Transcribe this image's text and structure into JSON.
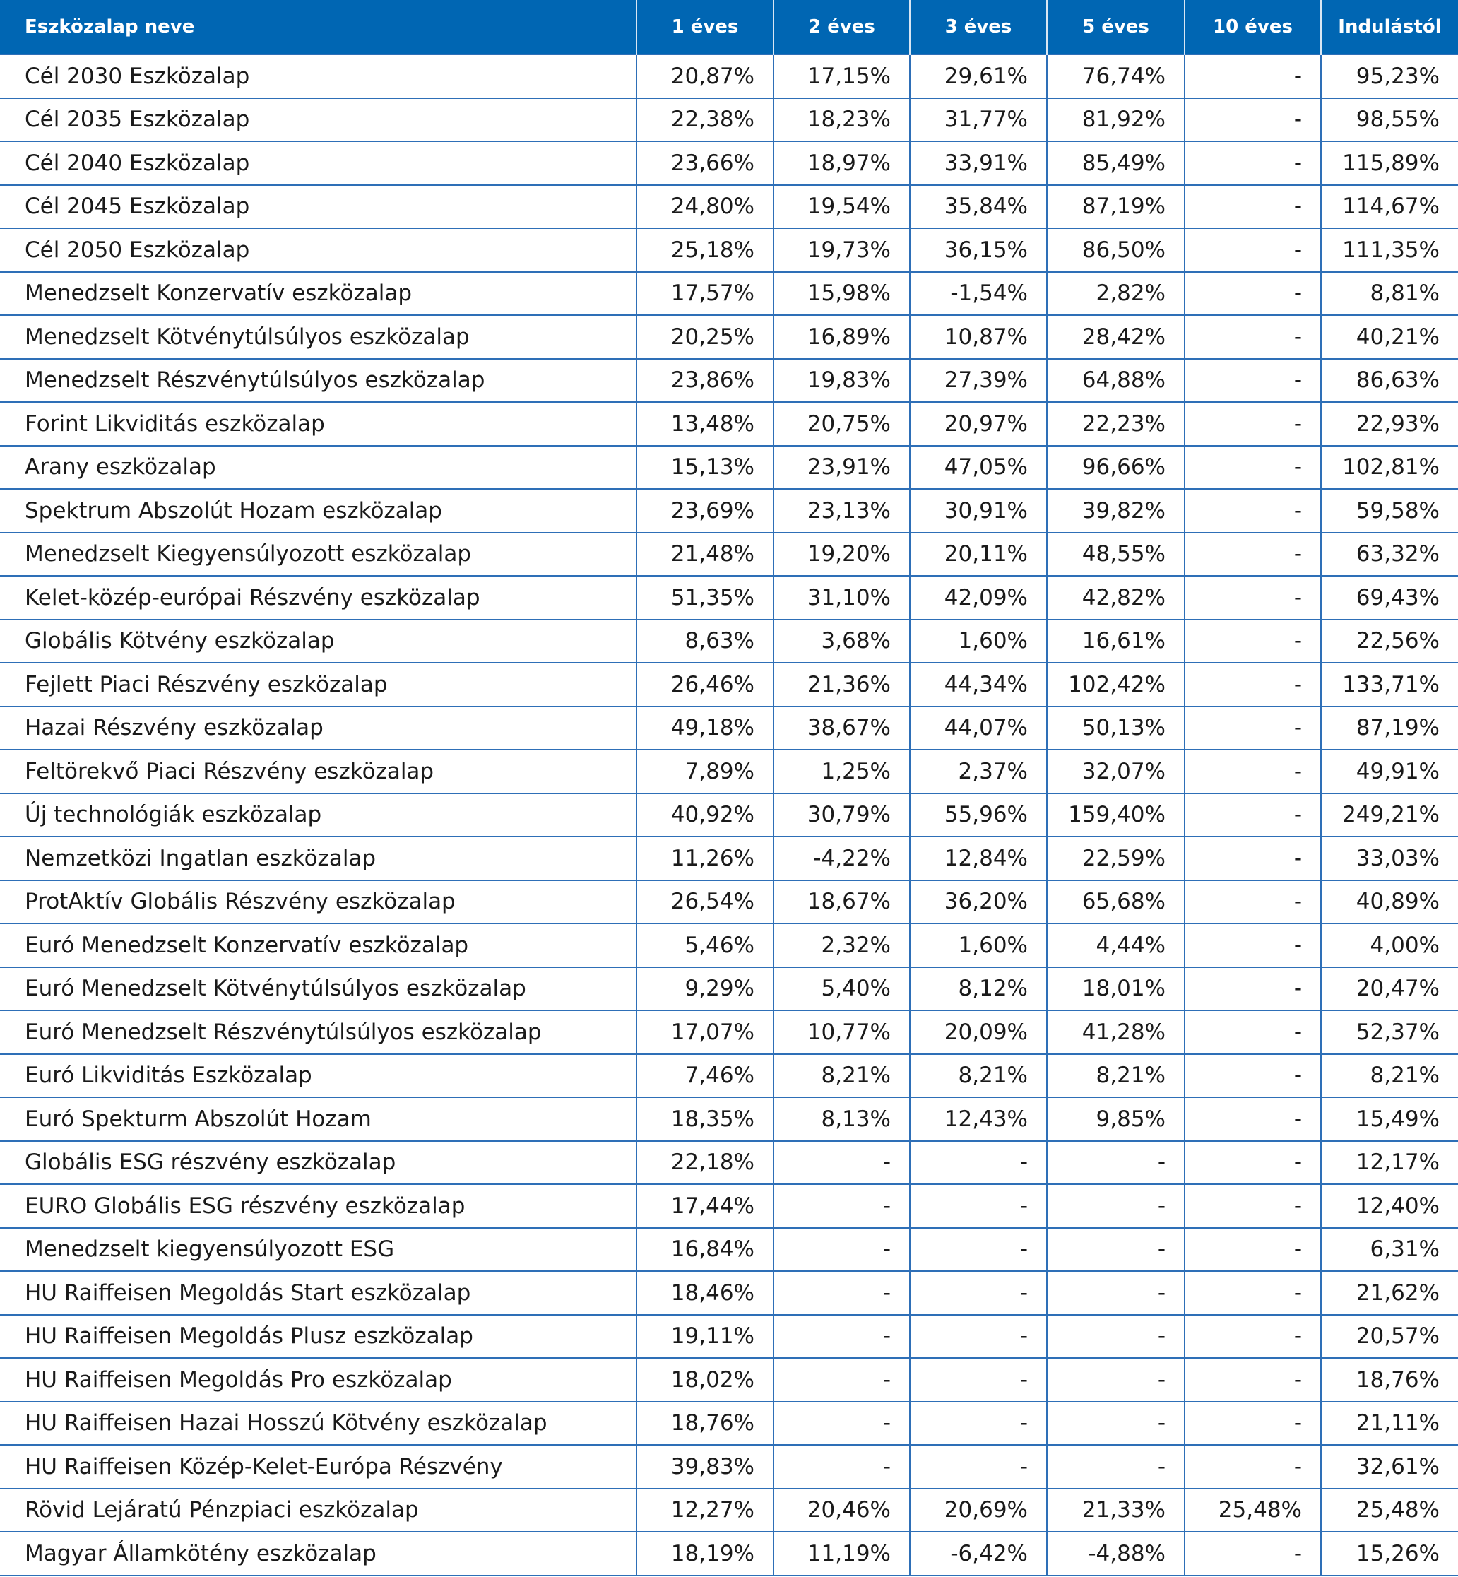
{
  "table": {
    "headers": [
      "Eszközalap neve",
      "1 éves",
      "2 éves",
      "3 éves",
      "5 éves",
      "10 éves",
      "Indulástól"
    ],
    "rows": [
      [
        "Cél 2030 Eszközalap",
        "20,87%",
        "17,15%",
        "29,61%",
        "76,74%",
        "-",
        "95,23%"
      ],
      [
        "Cél 2035 Eszközalap",
        "22,38%",
        "18,23%",
        "31,77%",
        "81,92%",
        "-",
        "98,55%"
      ],
      [
        "Cél 2040 Eszközalap",
        "23,66%",
        "18,97%",
        "33,91%",
        "85,49%",
        "-",
        "115,89%"
      ],
      [
        "Cél 2045 Eszközalap",
        "24,80%",
        "19,54%",
        "35,84%",
        "87,19%",
        "-",
        "114,67%"
      ],
      [
        "Cél 2050 Eszközalap",
        "25,18%",
        "19,73%",
        "36,15%",
        "86,50%",
        "-",
        "111,35%"
      ],
      [
        "Menedzselt Konzervatív eszközalap",
        "17,57%",
        "15,98%",
        "-1,54%",
        "2,82%",
        "-",
        "8,81%"
      ],
      [
        "Menedzselt Kötvénytúlsúlyos eszközalap",
        "20,25%",
        "16,89%",
        "10,87%",
        "28,42%",
        "-",
        "40,21%"
      ],
      [
        "Menedzselt Részvénytúlsúlyos eszközalap",
        "23,86%",
        "19,83%",
        "27,39%",
        "64,88%",
        "-",
        "86,63%"
      ],
      [
        "Forint Likviditás eszközalap",
        "13,48%",
        "20,75%",
        "20,97%",
        "22,23%",
        "-",
        "22,93%"
      ],
      [
        "Arany eszközalap",
        "15,13%",
        "23,91%",
        "47,05%",
        "96,66%",
        "-",
        "102,81%"
      ],
      [
        "Spektrum Abszolút Hozam eszközalap",
        "23,69%",
        "23,13%",
        "30,91%",
        "39,82%",
        "-",
        "59,58%"
      ],
      [
        "Menedzselt Kiegyensúlyozott eszközalap",
        "21,48%",
        "19,20%",
        "20,11%",
        "48,55%",
        "-",
        "63,32%"
      ],
      [
        "Kelet-közép-európai Részvény eszközalap",
        "51,35%",
        "31,10%",
        "42,09%",
        "42,82%",
        "-",
        "69,43%"
      ],
      [
        "Globális Kötvény eszközalap",
        "8,63%",
        "3,68%",
        "1,60%",
        "16,61%",
        "-",
        "22,56%"
      ],
      [
        "Fejlett Piaci Részvény eszközalap",
        "26,46%",
        "21,36%",
        "44,34%",
        "102,42%",
        "-",
        "133,71%"
      ],
      [
        "Hazai Részvény eszközalap",
        "49,18%",
        "38,67%",
        "44,07%",
        "50,13%",
        "-",
        "87,19%"
      ],
      [
        "Feltörekvő Piaci Részvény eszközalap",
        "7,89%",
        "1,25%",
        "2,37%",
        "32,07%",
        "-",
        "49,91%"
      ],
      [
        "Új technológiák eszközalap",
        "40,92%",
        "30,79%",
        "55,96%",
        "159,40%",
        "-",
        "249,21%"
      ],
      [
        "Nemzetközi Ingatlan eszközalap",
        "11,26%",
        "-4,22%",
        "12,84%",
        "22,59%",
        "-",
        "33,03%"
      ],
      [
        "ProtAktív Globális Részvény eszközalap",
        "26,54%",
        "18,67%",
        "36,20%",
        "65,68%",
        "-",
        "40,89%"
      ],
      [
        "Euró Menedzselt Konzervatív eszközalap",
        "5,46%",
        "2,32%",
        "1,60%",
        "4,44%",
        "-",
        "4,00%"
      ],
      [
        "Euró Menedzselt Kötvénytúlsúlyos eszközalap",
        "9,29%",
        "5,40%",
        "8,12%",
        "18,01%",
        "-",
        "20,47%"
      ],
      [
        "Euró Menedzselt Részvénytúlsúlyos eszközalap",
        "17,07%",
        "10,77%",
        "20,09%",
        "41,28%",
        "-",
        "52,37%"
      ],
      [
        "Euró Likviditás Eszközalap",
        "7,46%",
        "8,21%",
        "8,21%",
        "8,21%",
        "-",
        "8,21%"
      ],
      [
        "Euró Spekturm Abszolút Hozam",
        "18,35%",
        "8,13%",
        "12,43%",
        "9,85%",
        "-",
        "15,49%"
      ],
      [
        "Globális ESG részvény eszközalap",
        "22,18%",
        "-",
        "-",
        "-",
        "-",
        "12,17%"
      ],
      [
        "EURO Globális ESG részvény eszközalap",
        "17,44%",
        "-",
        "-",
        "-",
        "-",
        "12,40%"
      ],
      [
        "Menedzselt kiegyensúlyozott ESG",
        "16,84%",
        "-",
        "-",
        "-",
        "-",
        "6,31%"
      ],
      [
        "HU Raiffeisen Megoldás Start eszközalap",
        "18,46%",
        "-",
        "-",
        "-",
        "-",
        "21,62%"
      ],
      [
        "HU Raiffeisen Megoldás Plusz eszközalap",
        "19,11%",
        "-",
        "-",
        "-",
        "-",
        "20,57%"
      ],
      [
        "HU Raiffeisen Megoldás Pro eszközalap",
        "18,02%",
        "-",
        "-",
        "-",
        "-",
        "18,76%"
      ],
      [
        "HU Raiffeisen Hazai Hosszú Kötvény eszközalap",
        "18,76%",
        "-",
        "-",
        "-",
        "-",
        "21,11%"
      ],
      [
        "HU Raiffeisen Közép-Kelet-Európa Részvény",
        "39,83%",
        "-",
        "-",
        "-",
        "-",
        "32,61%"
      ],
      [
        "Rövid Lejáratú Pénzpiaci eszközalap",
        "12,27%",
        "20,46%",
        "20,69%",
        "21,33%",
        "25,48%",
        "25,48%"
      ],
      [
        "Magyar Államkötény eszközalap",
        "18,19%",
        "11,19%",
        "-6,42%",
        "-4,88%",
        "-",
        "15,26%"
      ]
    ]
  }
}
